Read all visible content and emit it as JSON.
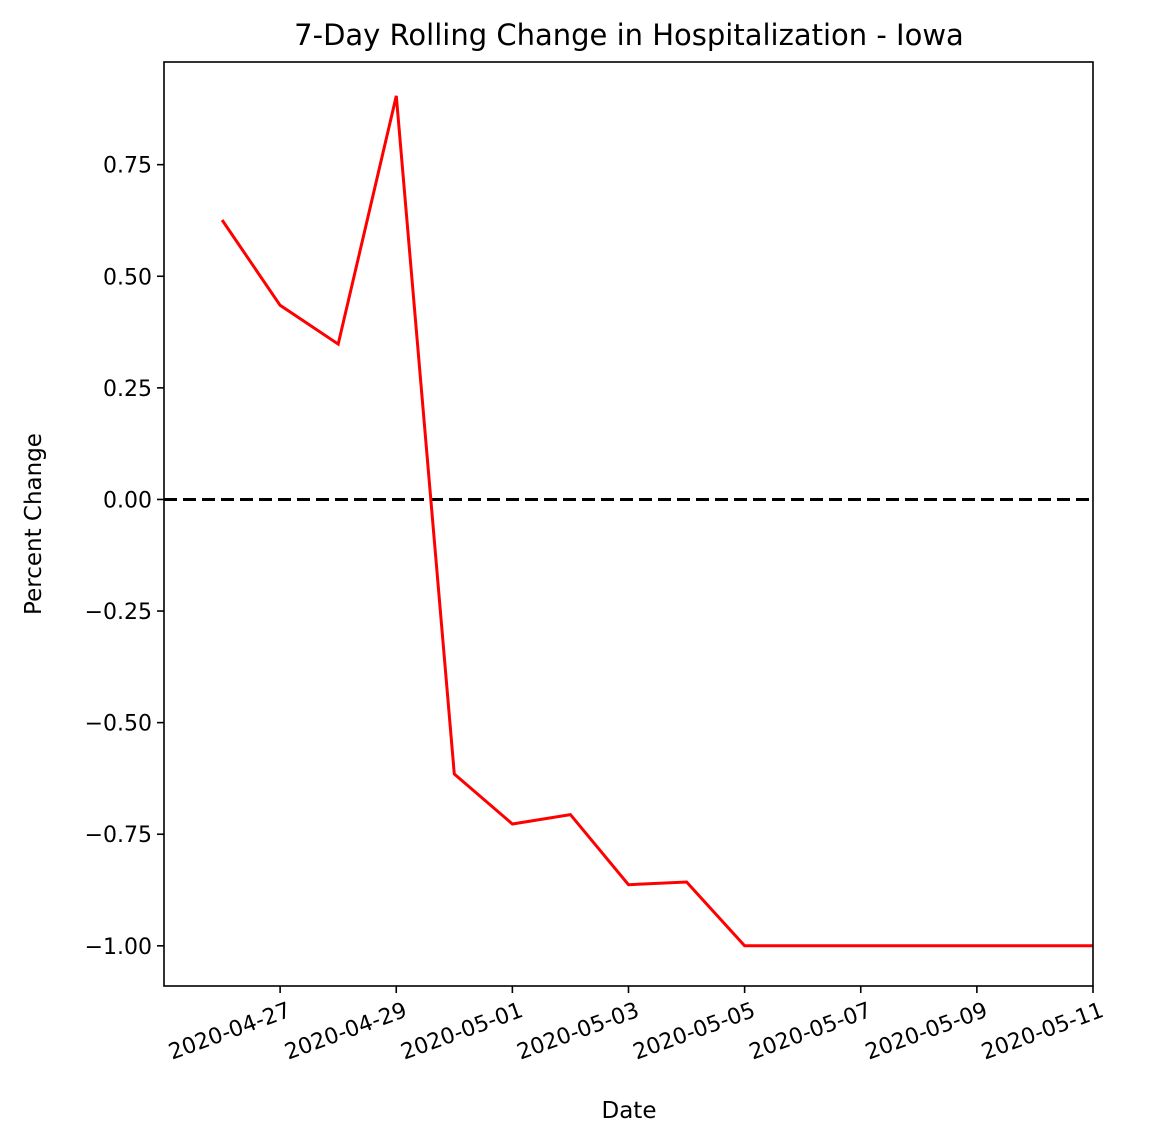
{
  "chart_data": {
    "type": "line",
    "title": "7-Day Rolling Change in Hospitalization - Iowa",
    "xlabel": "Date",
    "ylabel": "Percent Change",
    "x_is_date": true,
    "xlim": [
      "2020-04-25",
      "2020-05-11"
    ],
    "ylim": [
      -1.09,
      0.98
    ],
    "yticks": [
      0.75,
      0.5,
      0.25,
      0.0,
      -0.25,
      -0.5,
      -0.75,
      -1.0
    ],
    "ytick_labels": [
      "0.75",
      "0.50",
      "0.25",
      "0.00",
      "−0.25",
      "−0.50",
      "−0.75",
      "−1.00"
    ],
    "xticks": [
      "2020-04-27",
      "2020-04-29",
      "2020-05-01",
      "2020-05-03",
      "2020-05-05",
      "2020-05-07",
      "2020-05-09",
      "2020-05-11"
    ],
    "xtick_labels": [
      "2020-04-27",
      "2020-04-29",
      "2020-05-01",
      "2020-05-03",
      "2020-05-05",
      "2020-05-07",
      "2020-05-09",
      "2020-05-11"
    ],
    "grid": false,
    "series": [
      {
        "color": "#ff0000",
        "style": "solid",
        "x": [
          "2020-04-26",
          "2020-04-27",
          "2020-04-28",
          "2020-04-29",
          "2020-04-30",
          "2020-05-01",
          "2020-05-02",
          "2020-05-03",
          "2020-05-04",
          "2020-05-05",
          "2020-05-06",
          "2020-05-07",
          "2020-05-08",
          "2020-05-09",
          "2020-05-10",
          "2020-05-11"
        ],
        "y": [
          0.626,
          0.435,
          0.348,
          0.904,
          -0.615,
          -0.727,
          -0.706,
          -0.863,
          -0.857,
          -1.0,
          -1.0,
          -1.0,
          -1.0,
          -1.0,
          -1.0,
          -1.0
        ]
      }
    ],
    "reference_lines": [
      {
        "orientation": "horizontal",
        "y": 0.0,
        "color": "#000000",
        "style": "dashed"
      }
    ]
  }
}
